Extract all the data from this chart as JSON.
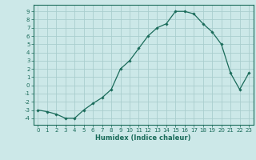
{
  "xlabel": "Humidex (Indice chaleur)",
  "x": [
    0,
    1,
    2,
    3,
    4,
    5,
    6,
    7,
    8,
    9,
    10,
    11,
    12,
    13,
    14,
    15,
    16,
    17,
    18,
    19,
    20,
    21,
    22,
    23
  ],
  "y": [
    -3,
    -3.2,
    -3.5,
    -4,
    -4,
    -3,
    -2.2,
    -1.5,
    -0.5,
    2,
    3,
    4.5,
    6,
    7,
    7.5,
    9,
    9,
    8.7,
    7.5,
    6.5,
    5,
    1.5,
    -0.5,
    1.5
  ],
  "line_color": "#1a6b5a",
  "marker": "D",
  "marker_size": 1.8,
  "bg_color": "#cce8e8",
  "grid_color": "#aacece",
  "tick_color": "#1a6b5a",
  "label_color": "#1a6b5a",
  "xlim": [
    -0.5,
    23.5
  ],
  "ylim": [
    -4.8,
    9.8
  ],
  "yticks": [
    -4,
    -3,
    -2,
    -1,
    0,
    1,
    2,
    3,
    4,
    5,
    6,
    7,
    8,
    9
  ],
  "xticks": [
    0,
    1,
    2,
    3,
    4,
    5,
    6,
    7,
    8,
    9,
    10,
    11,
    12,
    13,
    14,
    15,
    16,
    17,
    18,
    19,
    20,
    21,
    22,
    23
  ],
  "tick_fontsize": 5.0,
  "xlabel_fontsize": 6.0,
  "linewidth": 0.9
}
